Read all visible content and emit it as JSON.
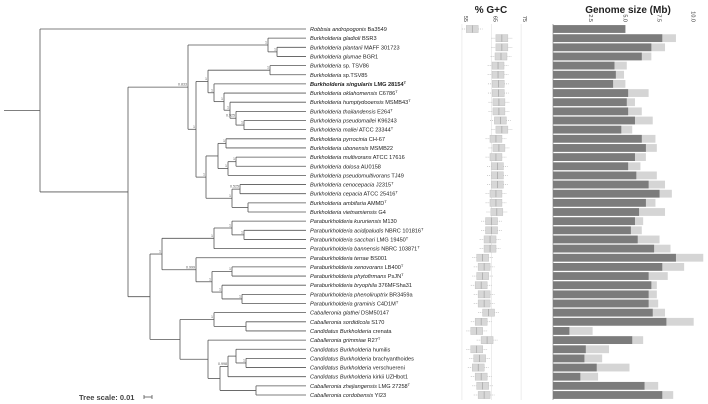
{
  "tree_scale_label": "Tree scale: 0.01",
  "chart_data": [
    {
      "type": "bar",
      "title": "% G+C",
      "xlabel": "% G+C",
      "xlim": [
        53,
        78
      ],
      "ticks": [
        55,
        65,
        75
      ],
      "categories": [
        "Robbsia andropogonis Ba3549",
        "Burkholderia gladioli BSR3",
        "Burkholderia plantarii MAFF 301723",
        "Burkholderia glumae BGR1",
        "Burkholderia sp. TSV86",
        "Burkholderia sp.TSV85",
        "Burkholderia singularis LMG 28154T",
        "Burkholderia oklahomensis C6786T",
        "Burkholderia humptydooensis MSMB43T",
        "Burkholderia thailandensis E264T",
        "Burkholderia pseudomallei K96243",
        "Burkholderia mallei ATCC 23344T",
        "Burkholderia pyrrocinia CH-67",
        "Burkholderia ubonensis MSMB22",
        "Burkholderia multivorans ATCC 17616",
        "Burkholderia dolosa AU0158",
        "Burkholderia pseudomultivorans TJ49",
        "Burkholderia cenocepacia J2315T",
        "Burkholderia cepacia ATCC 25416T",
        "Burkholderia ambifaria AMMDT",
        "Burkholderia vietnamiensis G4",
        "Paraburkholderia kururiensis M130",
        "Paraburkholderia acidipaludis NBRC 101816T",
        "Paraburkholderia sacchari LMG 19450T",
        "Paraburkholderia bannensis NBRC 103871T",
        "Paraburkholderia terrae BS001",
        "Paraburkholderia xenovorans LB400T",
        "Paraburkholderia phytofirmans PsJNT",
        "Paraburkholderia bryophila 376MFSha31",
        "Paraburkholderia phenoliruptrix BR3459a",
        "Paraburkholderia graminis C4D1MT",
        "Caballeronia glathei DSM50147",
        "Caballeronia sordidicola S170",
        "Candidatus Burkholderia crenata",
        "Caballeronia grimmiae R27T",
        "Candidatus Burkholderia humilis",
        "Candidatus Burkholderia brachyanthoides",
        "Candidatus Burkholderia verschuereni",
        "Candidatus Burkholderia kirkii UZHbot1",
        "Caballeronia zhejiangensis LMG 27258T",
        "Caballeronia cordobensis YI23"
      ],
      "series": [
        {
          "values": [
            58.5,
            68.5,
            68.5,
            68.2,
            67.2,
            67.2,
            67.3,
            67.3,
            67.5,
            67.5,
            68.0,
            68.5,
            66.5,
            67.5,
            66.5,
            67.0,
            67.0,
            67.0,
            66.5,
            66.5,
            66.8,
            65.0,
            65.0,
            64.5,
            64.5,
            62.0,
            62.5,
            62.0,
            61.5,
            62.5,
            62.5,
            64.0,
            61.5,
            60.0,
            63.5,
            60.0,
            61.0,
            60.5,
            61.5,
            62.0,
            62.5
          ]
        }
      ]
    },
    {
      "type": "bar",
      "title": "Genome size (Mb)",
      "xlabel": "Genome size (Mb)",
      "xlim": [
        0,
        11.2
      ],
      "ticks": [
        2.5,
        5.0,
        7.5,
        10.0
      ],
      "tick_labels": [
        "2.5",
        "5.0",
        "7.5",
        "10.0"
      ],
      "categories": "same as % G+C panel",
      "series": [
        {
          "name": "size",
          "values": [
            5.3,
            8.0,
            7.2,
            6.5,
            4.5,
            4.6,
            4.4,
            5.5,
            5.4,
            5.5,
            6.0,
            5.0,
            6.5,
            6.8,
            6.0,
            5.5,
            6.1,
            7.0,
            7.8,
            6.8,
            6.3,
            6.0,
            5.7,
            6.2,
            7.4,
            9.0,
            8.0,
            7.0,
            7.2,
            7.0,
            7.0,
            7.3,
            8.3,
            1.2,
            5.8,
            2.4,
            2.3,
            3.2,
            2.0,
            6.7,
            8.0
          ]
        },
        {
          "name": "range",
          "values": [
            5.3,
            9.0,
            8.2,
            7.2,
            5.4,
            5.2,
            5.3,
            7.0,
            6.0,
            6.5,
            7.3,
            5.8,
            7.5,
            7.6,
            6.8,
            6.4,
            7.6,
            8.2,
            8.7,
            7.5,
            8.2,
            6.6,
            6.5,
            7.8,
            8.6,
            11.0,
            9.6,
            8.4,
            7.6,
            7.6,
            7.7,
            8.2,
            10.3,
            2.9,
            6.6,
            4.1,
            3.6,
            5.6,
            3.3,
            7.7,
            8.8
          ]
        }
      ]
    }
  ],
  "tree": {
    "boots": [
      "1",
      "1",
      "1",
      "1",
      "0.925",
      "1",
      "1",
      "1",
      "1",
      "0.525",
      "1",
      "1",
      "1",
      "1",
      "1",
      "1",
      "0.833",
      "1",
      "1",
      "1",
      "1",
      "1",
      "1",
      "1",
      "0.999",
      "1",
      "1",
      "1",
      "0.998"
    ]
  }
}
